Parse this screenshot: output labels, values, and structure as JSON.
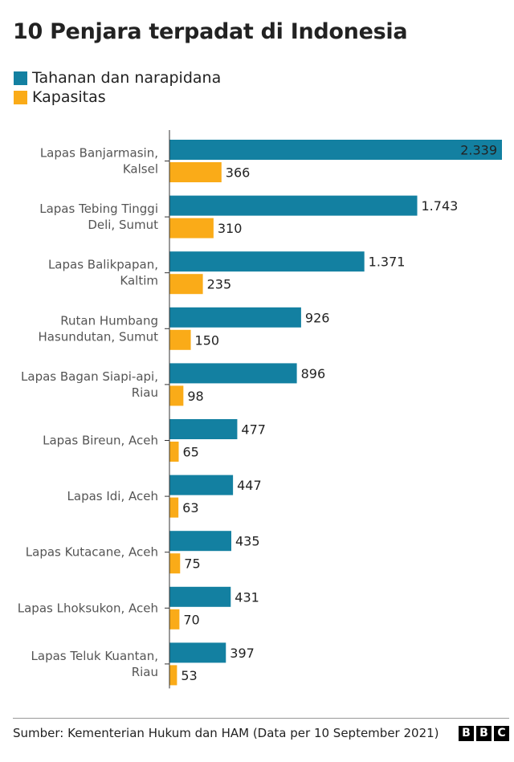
{
  "title": "10 Penjara terpadat di Indonesia",
  "legend": [
    {
      "label": "Tahanan dan narapidana",
      "color": "#1380A1"
    },
    {
      "label": "Kapasitas",
      "color": "#FAAB18"
    }
  ],
  "source": "Sumber: Kementerian Hukum dan HAM (Data per 10 September 2021)",
  "logo": [
    "B",
    "B",
    "C"
  ],
  "chart_data": {
    "type": "bar",
    "orientation": "horizontal",
    "categories": [
      [
        "Lapas Banjarmasin,",
        "Kalsel"
      ],
      [
        "Lapas Tebing Tinggi",
        "Deli, Sumut"
      ],
      [
        "Lapas Balikpapan,",
        "Kaltim"
      ],
      [
        "Rutan Humbang",
        "Hasundutan, Sumut"
      ],
      [
        "Lapas Bagan Siapi-api,",
        "Riau"
      ],
      [
        "Lapas Bireun, Aceh"
      ],
      [
        "Lapas Idi, Aceh"
      ],
      [
        "Lapas Kutacane, Aceh"
      ],
      [
        "Lapas Lhoksukon, Aceh"
      ],
      [
        "Lapas Teluk Kuantan,",
        "Riau"
      ]
    ],
    "series": [
      {
        "name": "Tahanan dan narapidana",
        "color": "#1380A1",
        "values": [
          2339,
          1743,
          1371,
          926,
          896,
          477,
          447,
          435,
          431,
          397
        ],
        "labels": [
          "2.339",
          "1.743",
          "1.371",
          "926",
          "896",
          "477",
          "447",
          "435",
          "431",
          "397"
        ]
      },
      {
        "name": "Kapasitas",
        "color": "#FAAB18",
        "values": [
          366,
          310,
          235,
          150,
          98,
          65,
          63,
          75,
          70,
          53
        ],
        "labels": [
          "366",
          "310",
          "235",
          "150",
          "98",
          "65",
          "63",
          "75",
          "70",
          "53"
        ]
      }
    ],
    "xlim": [
      0,
      2339
    ],
    "grid": false,
    "legend_position": "top-left"
  }
}
